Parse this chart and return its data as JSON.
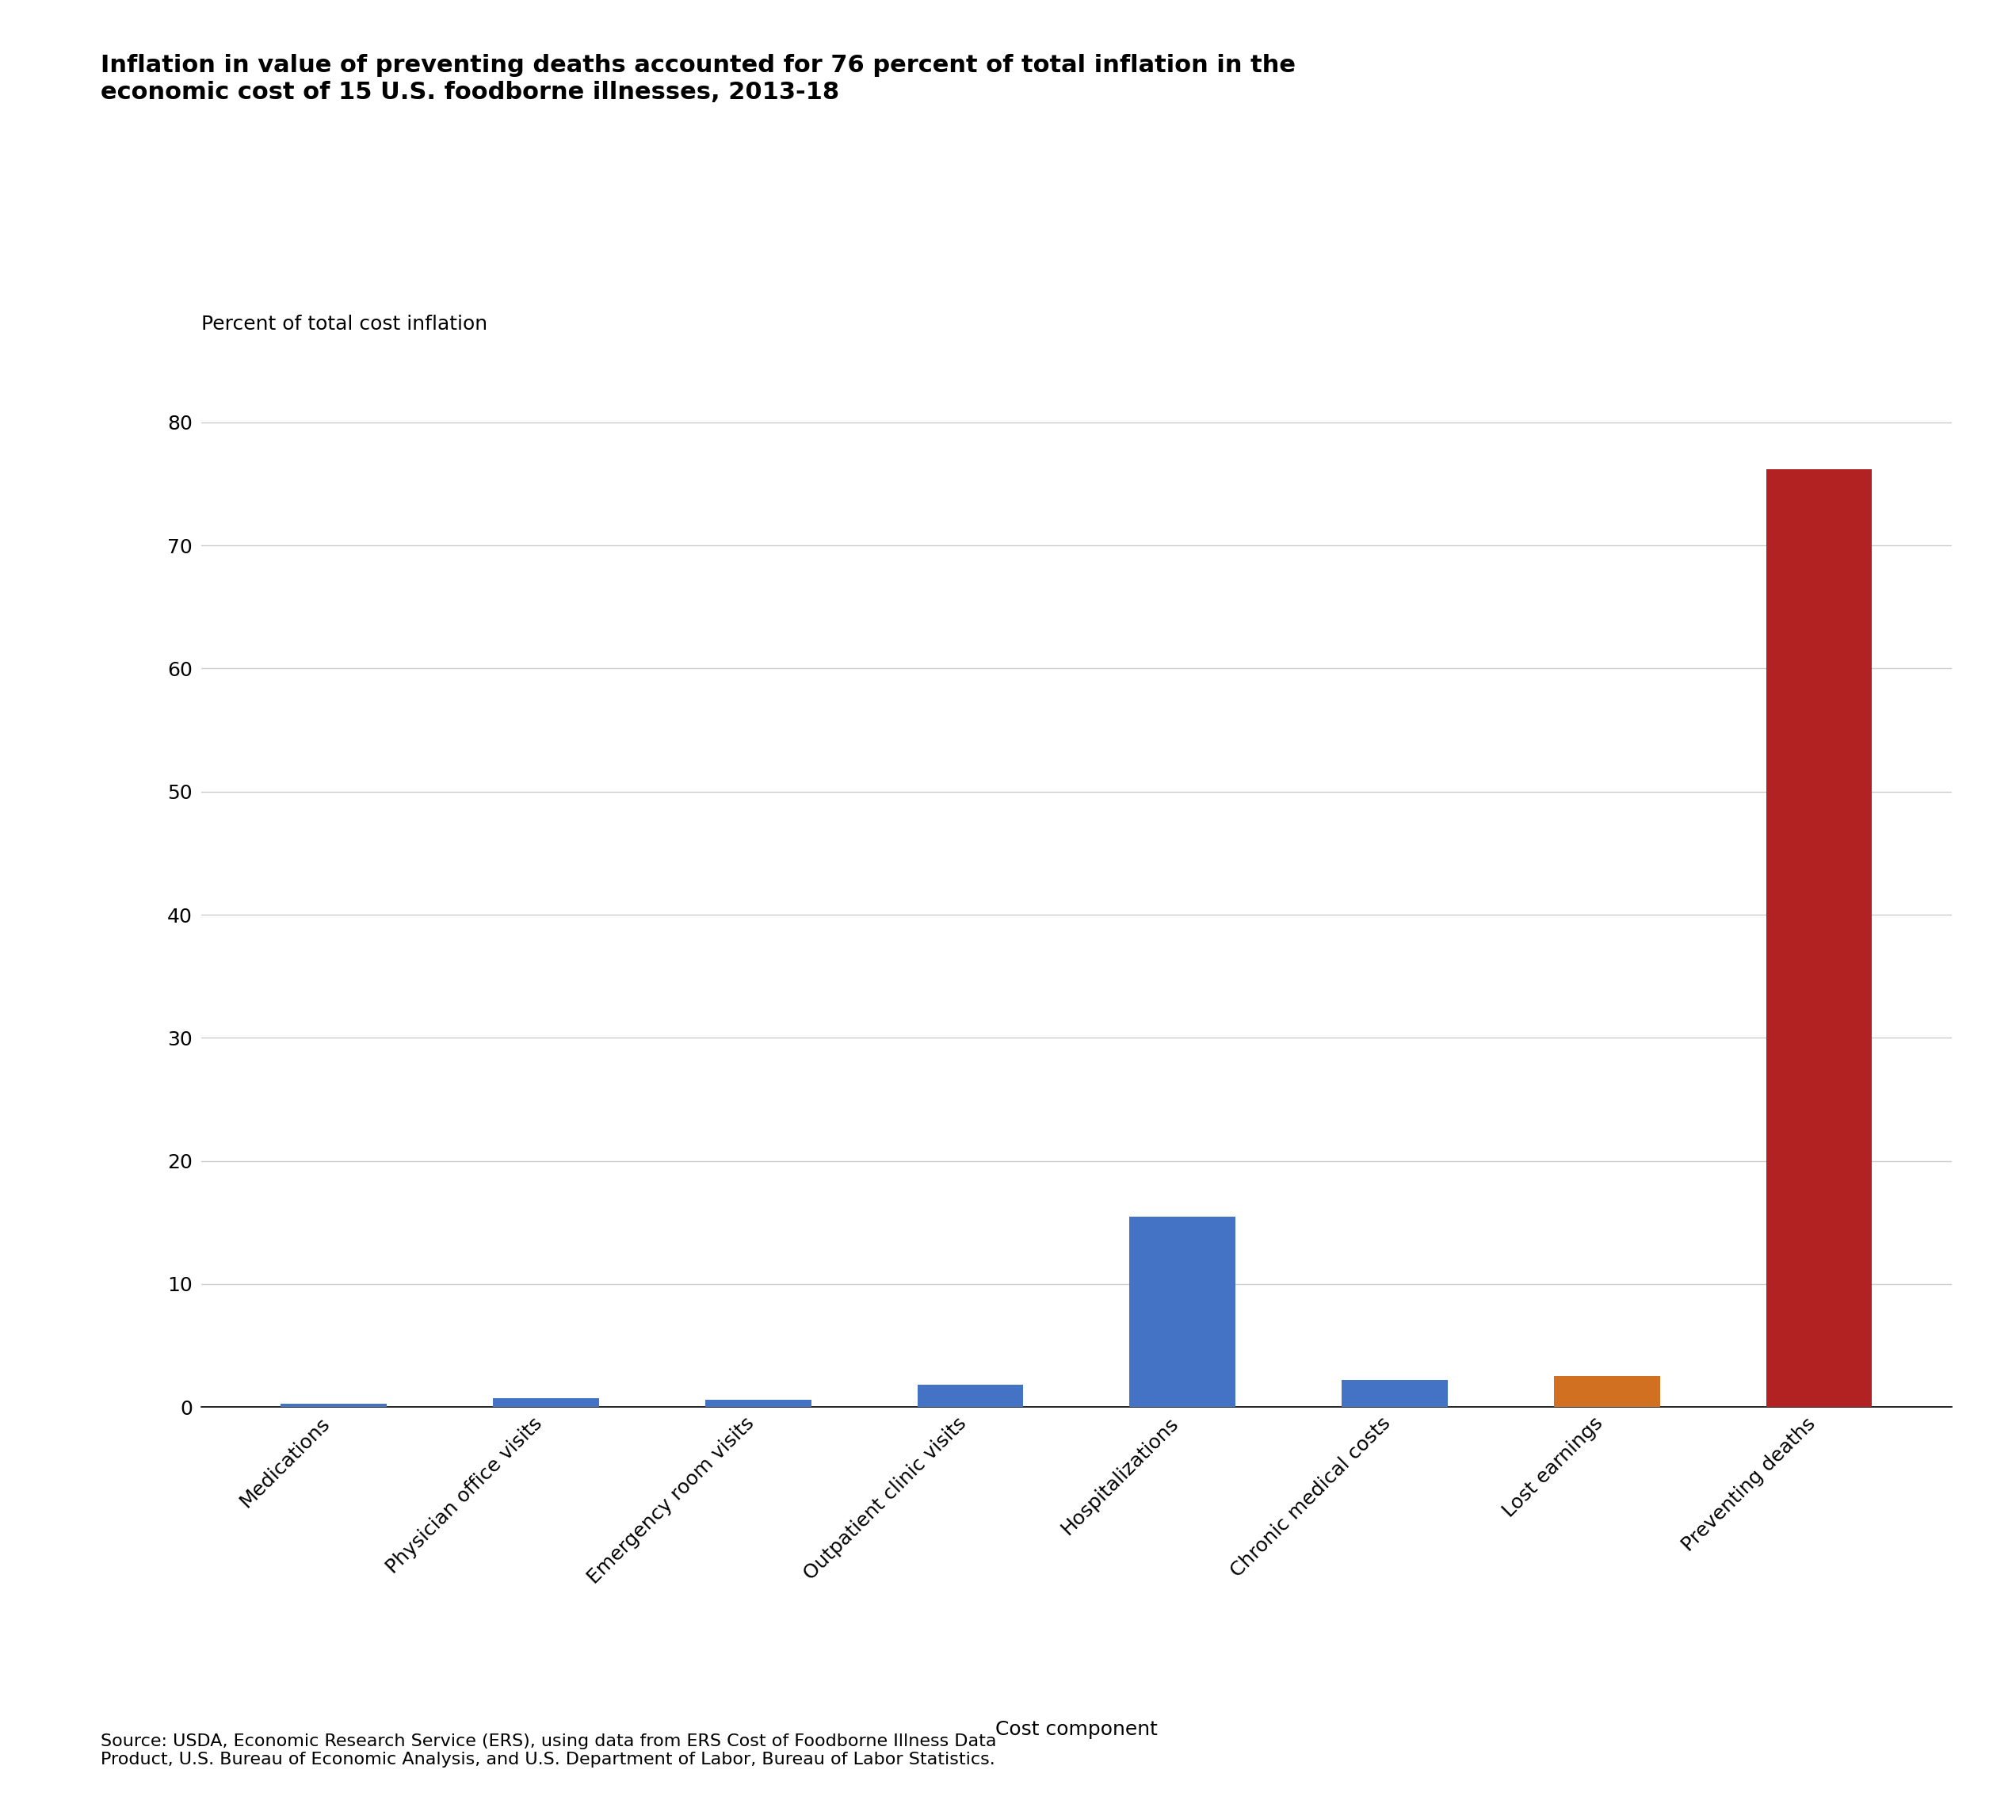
{
  "categories": [
    "Medications",
    "Physician office visits",
    "Emergency room visits",
    "Outpatient clinic visits",
    "Hospitalizations",
    "Chronic medical costs",
    "Lost earnings",
    "Preventing deaths"
  ],
  "values": [
    0.3,
    0.7,
    0.6,
    1.8,
    15.5,
    2.2,
    2.5,
    76.2
  ],
  "bar_colors": [
    "#4472C4",
    "#4472C4",
    "#4472C4",
    "#4472C4",
    "#4472C4",
    "#4472C4",
    "#D07020",
    "#B22222"
  ],
  "title": "Inflation in value of preventing deaths accounted for 76 percent of total inflation in the\neconomic cost of 15 U.S. foodborne illnesses, 2013-18",
  "ylabel": "Percent of total cost inflation",
  "xlabel": "Cost component",
  "ylim": [
    0,
    85
  ],
  "yticks": [
    0,
    10,
    20,
    30,
    40,
    50,
    60,
    70,
    80
  ],
  "source_text": "Source: USDA, Economic Research Service (ERS), using data from ERS Cost of Foodborne Illness Data\nProduct, U.S. Bureau of Economic Analysis, and U.S. Department of Labor, Bureau of Labor Statistics.",
  "background_color": "#ffffff",
  "grid_color": "#cccccc",
  "title_fontsize": 22,
  "label_fontsize": 18,
  "tick_fontsize": 18,
  "source_fontsize": 16
}
